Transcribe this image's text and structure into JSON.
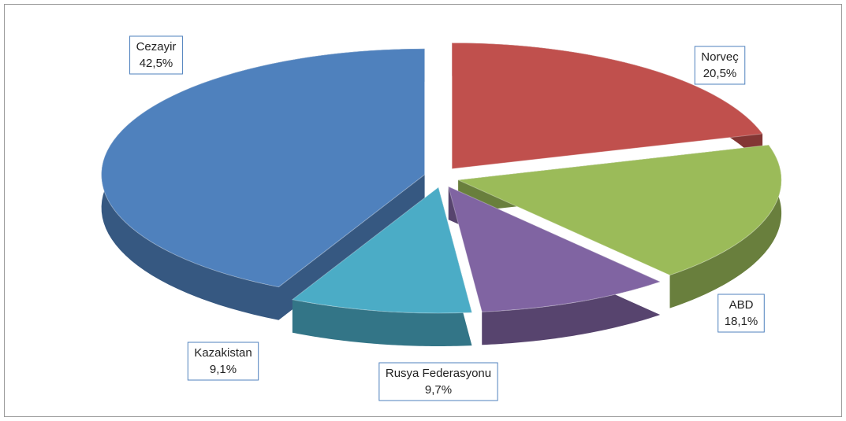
{
  "chart_data": {
    "type": "pie",
    "categories": [
      "Norveç",
      "ABD",
      "Rusya Federasyonu",
      "Kazakistan",
      "Cezayir"
    ],
    "values": [
      20.5,
      18.1,
      9.7,
      9.1,
      42.5
    ],
    "value_labels": [
      "20,5%",
      "18,1%",
      "9,7%",
      "9,1%",
      "42,5%"
    ],
    "colors": [
      "#c0504d",
      "#9bbb59",
      "#8064a2",
      "#4bacc6",
      "#4f81bd"
    ]
  }
}
